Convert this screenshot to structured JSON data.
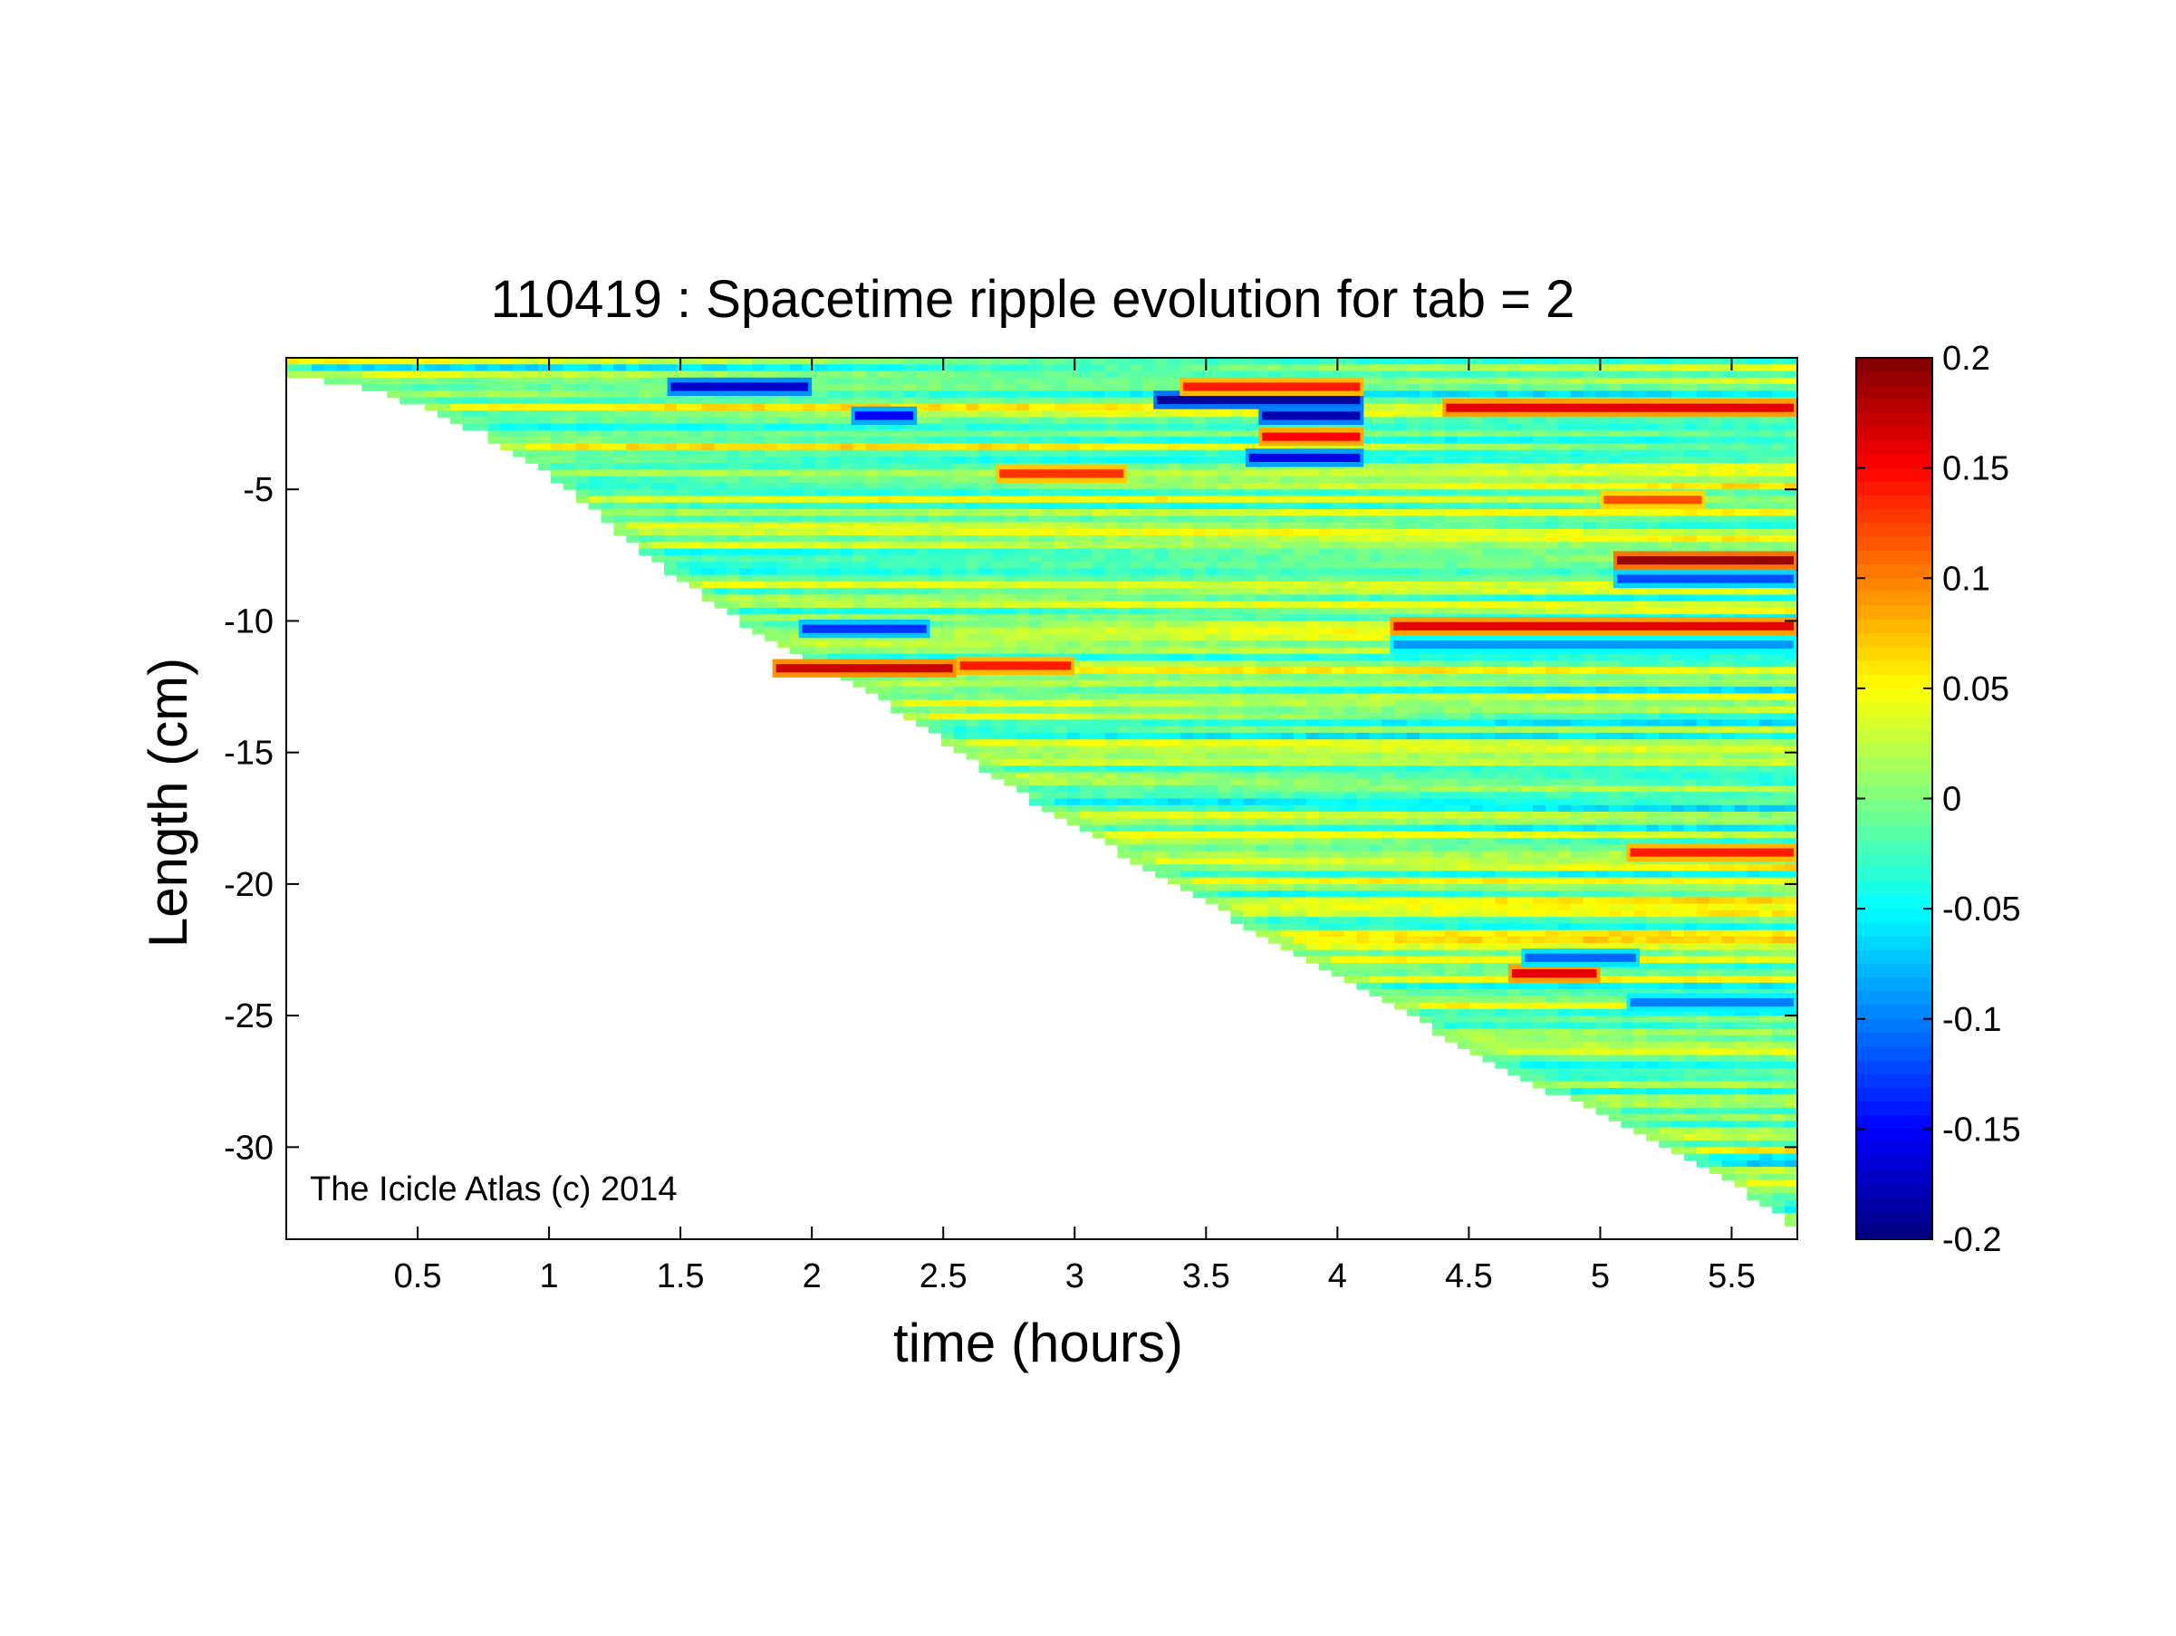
{
  "chart_data": {
    "type": "heatmap",
    "title": "110419 : Spacetime ripple evolution for tab = 2",
    "xlabel": "time (hours)",
    "ylabel": "Length (cm)",
    "xlim": [
      0,
      5.75
    ],
    "ylim": [
      -33.5,
      0
    ],
    "xticks": [
      0.5,
      1,
      1.5,
      2,
      2.5,
      3,
      3.5,
      4,
      4.5,
      5,
      5.5
    ],
    "xtick_labels": [
      "0.5",
      "1",
      "1.5",
      "2",
      "2.5",
      "3",
      "3.5",
      "4",
      "4.5",
      "5",
      "5.5"
    ],
    "yticks": [
      -5,
      -10,
      -15,
      -20,
      -25,
      -30
    ],
    "ytick_labels": [
      "-5",
      "-10",
      "-15",
      "-20",
      "-25",
      "-30"
    ],
    "colorbar": {
      "min": -0.2,
      "max": 0.2,
      "ticks": [
        0.2,
        0.15,
        0.1,
        0.05,
        0,
        -0.05,
        -0.1,
        -0.15,
        -0.2
      ],
      "tick_labels": [
        "0.2",
        "0.15",
        "0.1",
        "0.05",
        "0",
        "-0.05",
        "-0.1",
        "-0.15",
        "-0.2"
      ],
      "colormap": "jet"
    },
    "annotation": "The Icicle Atlas (c) 2014",
    "icicle_length_profile": [
      [
        0.0,
        -0.9
      ],
      [
        0.25,
        -1.1
      ],
      [
        0.5,
        -1.9
      ],
      [
        0.75,
        -3.0
      ],
      [
        1.0,
        -4.6
      ],
      [
        1.25,
        -6.6
      ],
      [
        1.5,
        -8.6
      ],
      [
        1.75,
        -10.3
      ],
      [
        2.0,
        -11.6
      ],
      [
        2.25,
        -13.0
      ],
      [
        2.5,
        -14.7
      ],
      [
        2.75,
        -16.4
      ],
      [
        3.0,
        -17.9
      ],
      [
        3.25,
        -19.4
      ],
      [
        3.5,
        -20.8
      ],
      [
        3.75,
        -22.3
      ],
      [
        4.0,
        -23.7
      ],
      [
        4.25,
        -25.0
      ],
      [
        4.5,
        -26.4
      ],
      [
        4.75,
        -27.7
      ],
      [
        5.0,
        -28.9
      ],
      [
        5.25,
        -30.1
      ],
      [
        5.5,
        -31.5
      ],
      [
        5.75,
        -33.2
      ]
    ],
    "features": [
      {
        "kind": "positive",
        "t_start": 1.85,
        "t_end": 2.55,
        "length": -11.8,
        "amplitude": 0.17
      },
      {
        "kind": "positive",
        "t_start": 2.55,
        "t_end": 3.0,
        "length": -11.7,
        "amplitude": 0.14
      },
      {
        "kind": "negative",
        "t_start": 1.95,
        "t_end": 2.45,
        "length": -10.3,
        "amplitude": -0.13
      },
      {
        "kind": "positive",
        "t_start": 4.2,
        "t_end": 5.75,
        "length": -10.2,
        "amplitude": 0.16
      },
      {
        "kind": "negative",
        "t_start": 4.2,
        "t_end": 5.75,
        "length": -10.9,
        "amplitude": -0.09
      },
      {
        "kind": "positive",
        "t_start": 5.05,
        "t_end": 5.75,
        "length": -7.7,
        "amplitude": 0.19
      },
      {
        "kind": "negative",
        "t_start": 5.05,
        "t_end": 5.75,
        "length": -8.4,
        "amplitude": -0.12
      },
      {
        "kind": "positive",
        "t_start": 4.4,
        "t_end": 5.75,
        "length": -1.9,
        "amplitude": 0.16
      },
      {
        "kind": "negative",
        "t_start": 3.3,
        "t_end": 4.1,
        "length": -1.6,
        "amplitude": -0.19
      },
      {
        "kind": "positive",
        "t_start": 3.4,
        "t_end": 4.1,
        "length": -1.1,
        "amplitude": 0.14
      },
      {
        "kind": "negative",
        "t_start": 3.7,
        "t_end": 4.1,
        "length": -2.2,
        "amplitude": -0.18
      },
      {
        "kind": "positive",
        "t_start": 3.7,
        "t_end": 4.1,
        "length": -3.0,
        "amplitude": 0.15
      },
      {
        "kind": "negative",
        "t_start": 3.65,
        "t_end": 4.1,
        "length": -3.8,
        "amplitude": -0.16
      },
      {
        "kind": "negative",
        "t_start": 1.45,
        "t_end": 2.0,
        "length": -1.1,
        "amplitude": -0.17
      },
      {
        "kind": "negative",
        "t_start": 2.15,
        "t_end": 2.4,
        "length": -2.2,
        "amplitude": -0.15
      },
      {
        "kind": "positive",
        "t_start": 2.7,
        "t_end": 3.2,
        "length": -4.4,
        "amplitude": 0.13
      },
      {
        "kind": "positive",
        "t_start": 4.65,
        "t_end": 5.0,
        "length": -23.4,
        "amplitude": 0.16
      },
      {
        "kind": "negative",
        "t_start": 4.7,
        "t_end": 5.15,
        "length": -22.8,
        "amplitude": -0.11
      },
      {
        "kind": "positive",
        "t_start": 5.1,
        "t_end": 5.75,
        "length": -18.8,
        "amplitude": 0.14
      },
      {
        "kind": "negative",
        "t_start": 5.1,
        "t_end": 5.75,
        "length": -24.5,
        "amplitude": -0.1
      },
      {
        "kind": "positive",
        "t_start": 5.0,
        "t_end": 5.4,
        "length": -5.4,
        "amplitude": 0.12
      }
    ]
  }
}
